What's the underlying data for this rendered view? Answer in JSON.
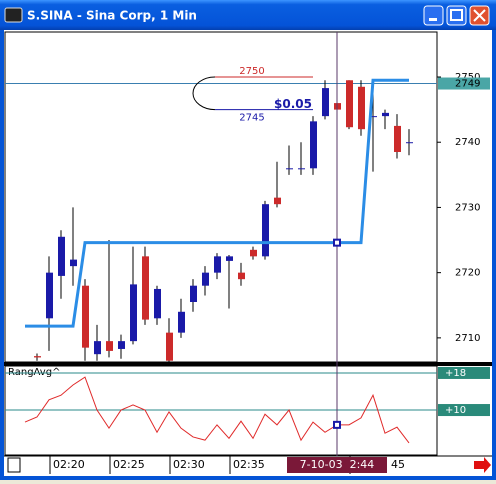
{
  "window": {
    "title": "S.SINA - Sina Corp, 1 Min"
  },
  "chart_data": [
    {
      "type": "candlestick",
      "categories": [
        null,
        null,
        "02:20",
        null,
        null,
        null,
        null,
        "02:25",
        null,
        null,
        null,
        null,
        "02:30",
        null,
        null,
        null,
        null,
        "02:35",
        null,
        null,
        null,
        null,
        null,
        null,
        null,
        null,
        null,
        "45",
        null,
        null,
        null,
        null,
        null
      ],
      "x_cursor": "7-10-03  2:44",
      "open": [
        null,
        2707.2,
        2713,
        2719.5,
        2721,
        2718,
        2707.5,
        2709.5,
        2708.3,
        2709.5,
        2722.5,
        2713,
        2710.8,
        2710.8,
        2715.5,
        2718,
        2720,
        2721.8,
        2720,
        2723.5,
        2722.5,
        2731.5,
        2736,
        2736,
        2736,
        2744,
        2746,
        2749.5,
        2748.5,
        2744,
        2744,
        2742.5,
        2740
      ],
      "high": [
        null,
        2707.6,
        2722.5,
        2726.5,
        2730,
        2719,
        2712,
        2725,
        2710.5,
        2724,
        2724,
        2718,
        2713,
        2716,
        2719,
        2721,
        2723,
        2722.7,
        2721.5,
        2724,
        2731,
        2737,
        2739.5,
        2740,
        2744,
        2749.5,
        2748,
        2749.5,
        2749.5,
        2749.5,
        2745,
        2744.3,
        2742
      ],
      "low": [
        null,
        2706.5,
        2708,
        2716,
        2718,
        2706.5,
        2706.5,
        2707,
        2706.8,
        2709,
        2712,
        2712,
        2706.3,
        2710,
        2714,
        2716.5,
        2719,
        2714.5,
        2718,
        2722,
        2722,
        2730,
        2735,
        2735,
        2735,
        2743.5,
        2744,
        2742,
        2741,
        2735.5,
        2742,
        2737.5,
        2738
      ],
      "close": [
        null,
        2707,
        2720,
        2725.5,
        2722,
        2708.5,
        2709.5,
        2708,
        2709.5,
        2718.2,
        2712.8,
        2717.5,
        2706.5,
        2714,
        2718,
        2720,
        2722.5,
        2722.5,
        2719,
        2722.5,
        2730.5,
        2730.5,
        2736,
        2736,
        2743.2,
        2748.3,
        2745,
        2742.3,
        2742,
        2744,
        2744.5,
        2738.5,
        2740
      ],
      "up_color": "#1a1aa8",
      "down_color": "#cc2a2a",
      "overlay": {
        "type": "line",
        "color": "#2b8de6",
        "values": [
          2711.8,
          2711.8,
          2711.8,
          2711.8,
          2711.8,
          2724.6,
          2724.6,
          2724.6,
          2724.6,
          2724.6,
          2724.6,
          2724.6,
          2724.6,
          2724.6,
          2724.6,
          2724.6,
          2724.6,
          2724.6,
          2724.6,
          2724.6,
          2724.6,
          2724.6,
          2724.6,
          2724.6,
          2724.6,
          2724.6,
          2724.6,
          2724.6,
          2724.6,
          2749.5,
          2749.5,
          2749.5,
          2749.5
        ]
      },
      "last_price": 2749,
      "annotation": {
        "high": 2750,
        "low": 2745,
        "label": "$0.05"
      },
      "ylim": [
        2706.3,
        2756.9
      ],
      "yticks": [
        2710,
        2720,
        2730,
        2740,
        2750
      ]
    },
    {
      "type": "line",
      "title": "RangAvg^",
      "color": "#e02a2a",
      "values": [
        7.4,
        8.5,
        12.2,
        13.2,
        15.4,
        17.1,
        10,
        6.1,
        10,
        11.1,
        10,
        5.2,
        9.6,
        6.1,
        4.2,
        3.5,
        6.8,
        3.9,
        7.6,
        3.9,
        9.1,
        6.8,
        10,
        3.5,
        7.4,
        5.2,
        6.8,
        6.8,
        8.3,
        13.2,
        5.0,
        6.3,
        2.9
      ],
      "ylim": [
        0.3,
        19.5
      ],
      "yticks": [
        {
          "value": 18,
          "label": "+18"
        },
        {
          "value": 10,
          "label": "+10"
        }
      ]
    }
  ]
}
